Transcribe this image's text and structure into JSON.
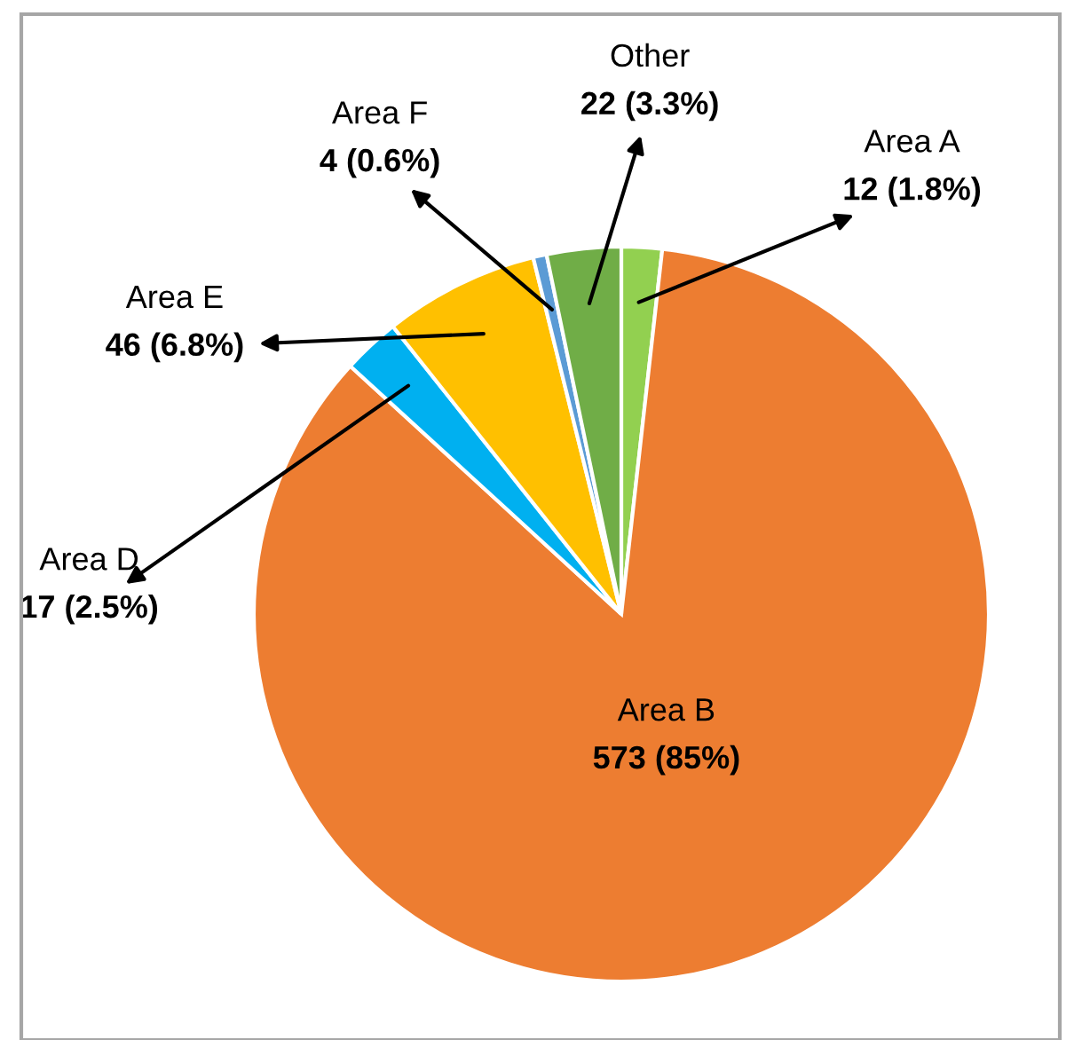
{
  "chart_data": {
    "type": "pie",
    "categories": [
      "Area A",
      "Area B",
      "Area D",
      "Area E",
      "Area F",
      "Other"
    ],
    "values": [
      12,
      573,
      17,
      46,
      4,
      22
    ],
    "value_labels": [
      "12 (1.8%)",
      "573 (85%)",
      "17 (2.5%)",
      "46 (6.8%)",
      "4 (0.6%)",
      "22 (3.3%)"
    ],
    "colors": [
      "#92d050",
      "#ed7d31",
      "#00b0f0",
      "#ffc000",
      "#5b9bd5",
      "#70ad47"
    ],
    "legend": false
  }
}
